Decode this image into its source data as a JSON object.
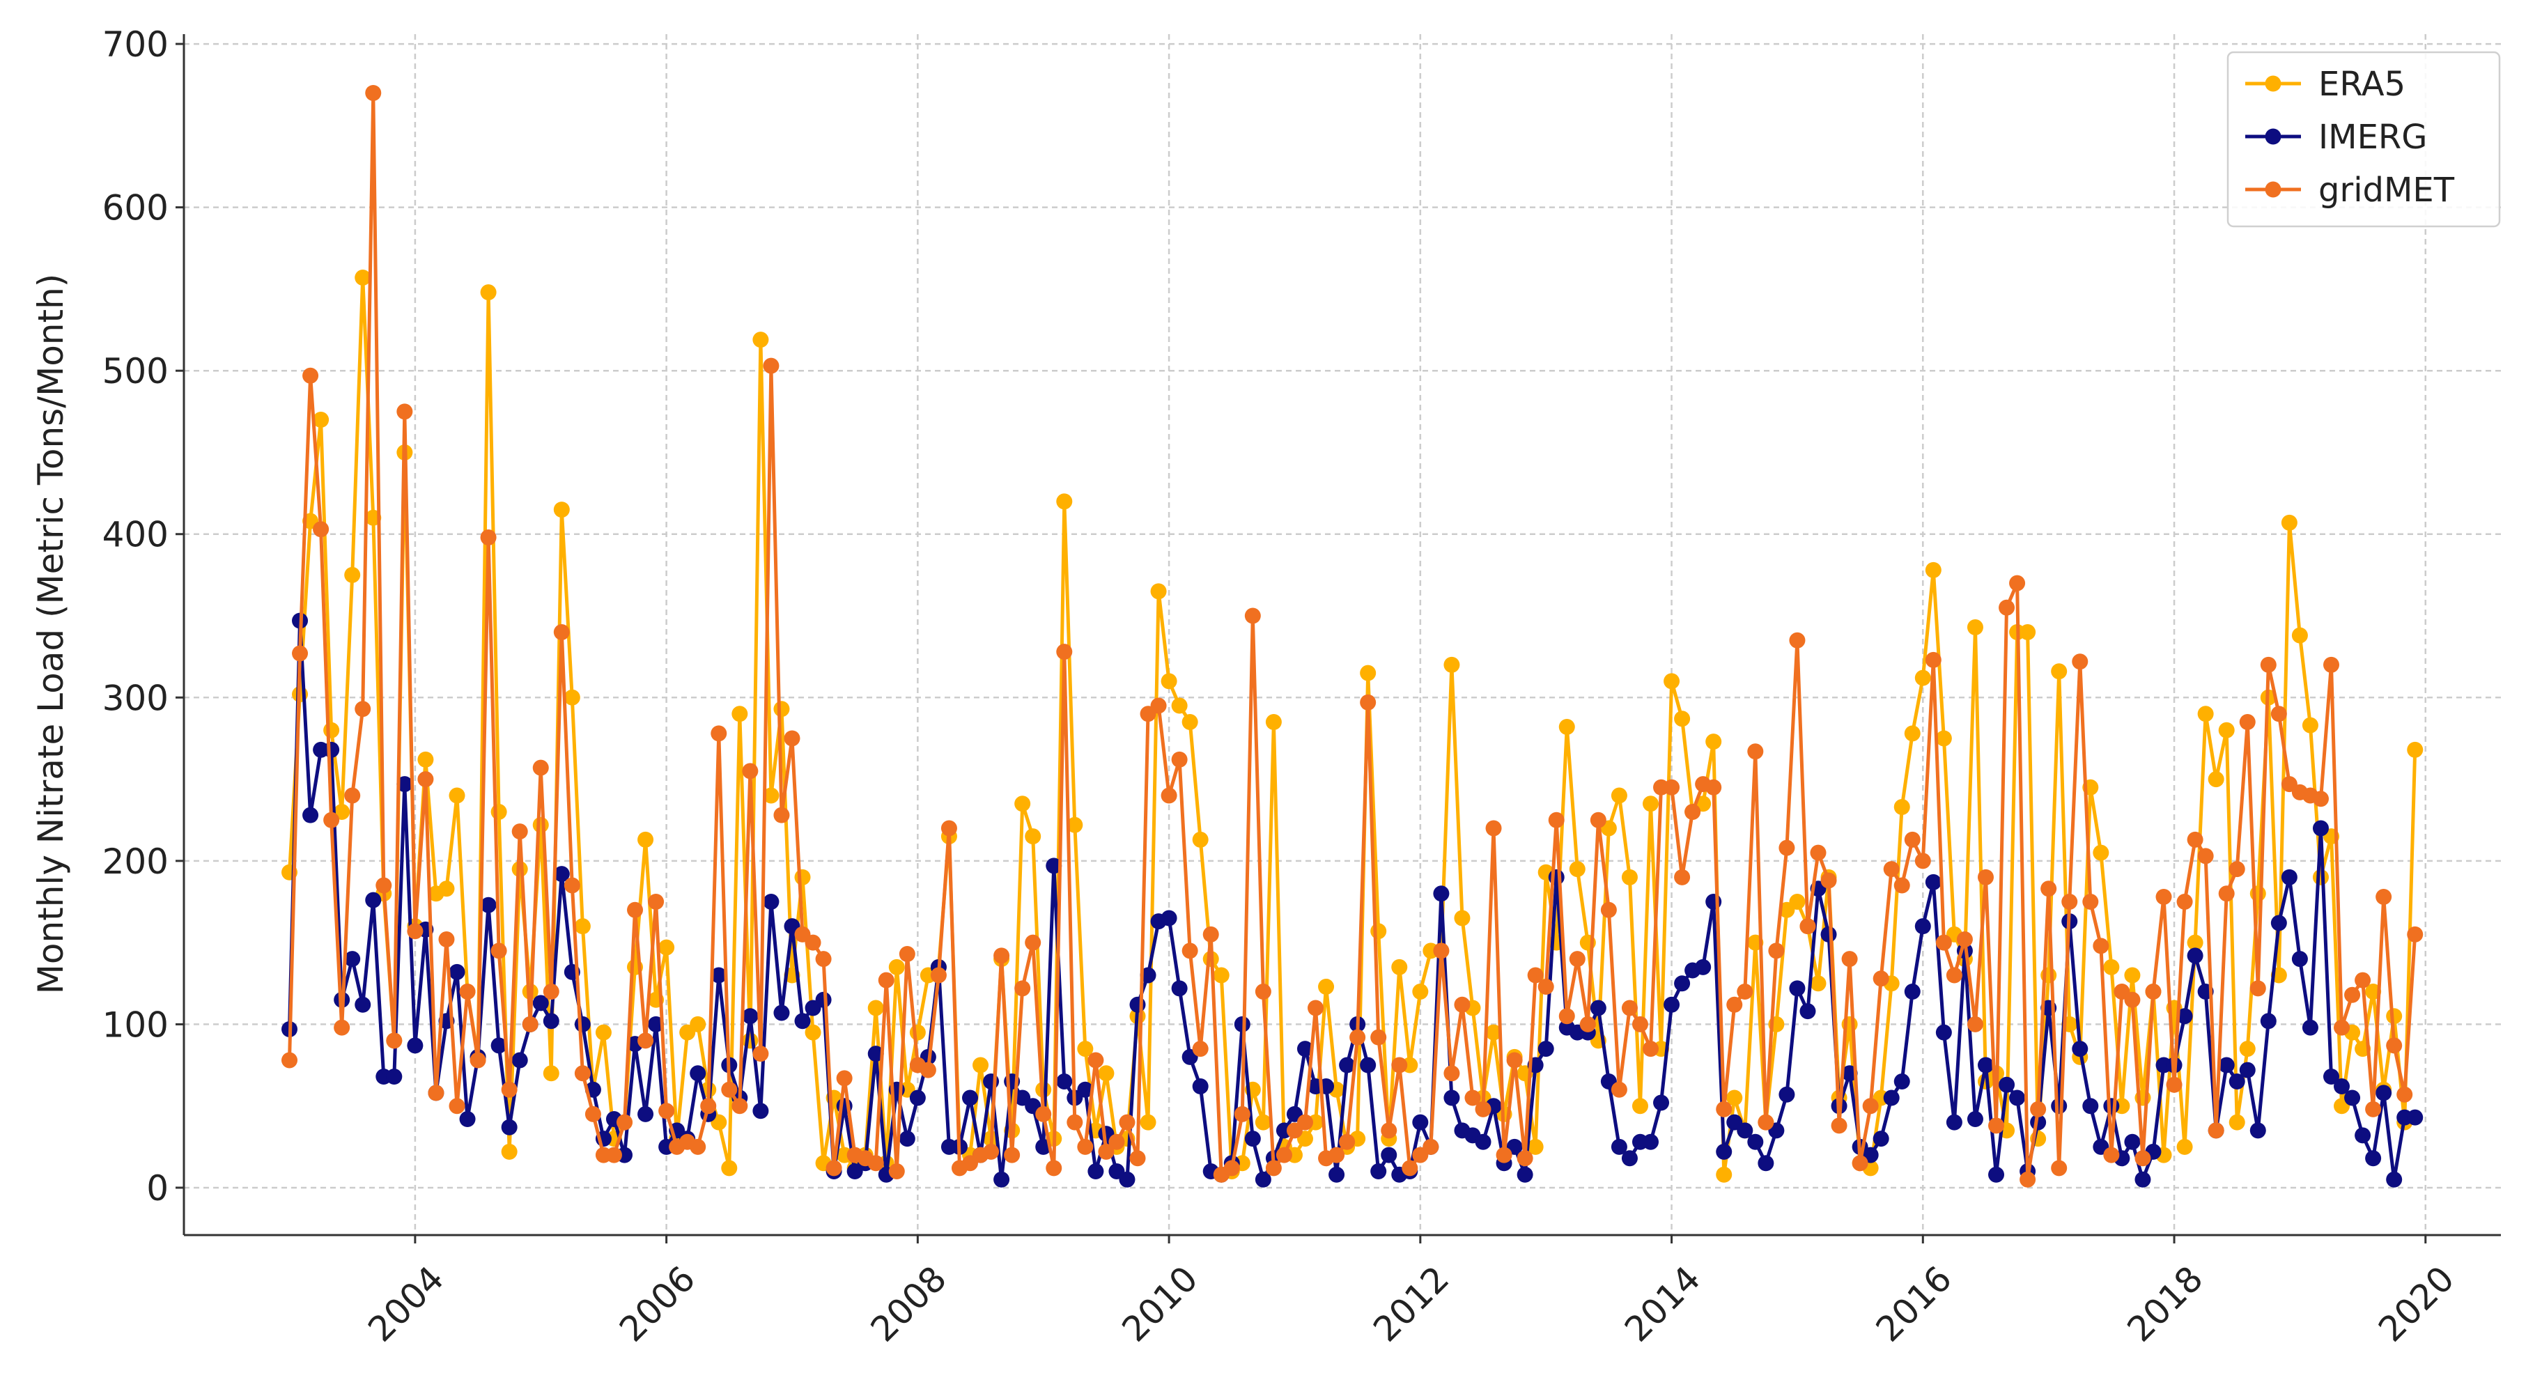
{
  "chart_data": {
    "type": "line",
    "y_label": "Monthly Nitrate Load (Metric Tons/Month)",
    "x": [
      "2003-01",
      "2003-02",
      "2003-03",
      "2003-04",
      "2003-05",
      "2003-06",
      "2003-07",
      "2003-08",
      "2003-09",
      "2003-10",
      "2003-11",
      "2003-12",
      "2004-01",
      "2004-02",
      "2004-03",
      "2004-04",
      "2004-05",
      "2004-06",
      "2004-07",
      "2004-08",
      "2004-09",
      "2004-10",
      "2004-11",
      "2004-12",
      "2005-01",
      "2005-02",
      "2005-03",
      "2005-04",
      "2005-05",
      "2005-06",
      "2005-07",
      "2005-08",
      "2005-09",
      "2005-10",
      "2005-11",
      "2005-12",
      "2006-01",
      "2006-02",
      "2006-03",
      "2006-04",
      "2006-05",
      "2006-06",
      "2006-07",
      "2006-08",
      "2006-09",
      "2006-10",
      "2006-11",
      "2006-12",
      "2007-01",
      "2007-02",
      "2007-03",
      "2007-04",
      "2007-05",
      "2007-06",
      "2007-07",
      "2007-08",
      "2007-09",
      "2007-10",
      "2007-11",
      "2007-12",
      "2008-01",
      "2008-02",
      "2008-03",
      "2008-04",
      "2008-05",
      "2008-06",
      "2008-07",
      "2008-08",
      "2008-09",
      "2008-10",
      "2008-11",
      "2008-12",
      "2009-01",
      "2009-02",
      "2009-03",
      "2009-04",
      "2009-05",
      "2009-06",
      "2009-07",
      "2009-08",
      "2009-09",
      "2009-10",
      "2009-11",
      "2009-12",
      "2010-01",
      "2010-02",
      "2010-03",
      "2010-04",
      "2010-05",
      "2010-06",
      "2010-07",
      "2010-08",
      "2010-09",
      "2010-10",
      "2010-11",
      "2010-12",
      "2011-01",
      "2011-02",
      "2011-03",
      "2011-04",
      "2011-05",
      "2011-06",
      "2011-07",
      "2011-08",
      "2011-09",
      "2011-10",
      "2011-11",
      "2011-12",
      "2012-01",
      "2012-02",
      "2012-03",
      "2012-04",
      "2012-05",
      "2012-06",
      "2012-07",
      "2012-08",
      "2012-09",
      "2012-10",
      "2012-11",
      "2012-12",
      "2013-01",
      "2013-02",
      "2013-03",
      "2013-04",
      "2013-05",
      "2013-06",
      "2013-07",
      "2013-08",
      "2013-09",
      "2013-10",
      "2013-11",
      "2013-12",
      "2014-01",
      "2014-02",
      "2014-03",
      "2014-04",
      "2014-05",
      "2014-06",
      "2014-07",
      "2014-08",
      "2014-09",
      "2014-10",
      "2014-11",
      "2014-12",
      "2015-01",
      "2015-02",
      "2015-03",
      "2015-04",
      "2015-05",
      "2015-06",
      "2015-07",
      "2015-08",
      "2015-09",
      "2015-10",
      "2015-11",
      "2015-12",
      "2016-01",
      "2016-02",
      "2016-03",
      "2016-04",
      "2016-05",
      "2016-06",
      "2016-07",
      "2016-08",
      "2016-09",
      "2016-10",
      "2016-11",
      "2016-12",
      "2017-01",
      "2017-02",
      "2017-03",
      "2017-04",
      "2017-05",
      "2017-06",
      "2017-07",
      "2017-08",
      "2017-09",
      "2017-10",
      "2017-11",
      "2017-12",
      "2018-01",
      "2018-02",
      "2018-03",
      "2018-04",
      "2018-05",
      "2018-06",
      "2018-07",
      "2018-08",
      "2018-09",
      "2018-10",
      "2018-11",
      "2018-12",
      "2019-01",
      "2019-02",
      "2019-03",
      "2019-04",
      "2019-05",
      "2019-06",
      "2019-07",
      "2019-08",
      "2019-09",
      "2019-10",
      "2019-11",
      "2019-12"
    ],
    "series": [
      {
        "name": "ERA5",
        "color": "#ffb000",
        "values": [
          193,
          302,
          408,
          470,
          280,
          230,
          375,
          557,
          410,
          180,
          90,
          450,
          160,
          262,
          180,
          183,
          240,
          120,
          80,
          548,
          230,
          22,
          195,
          120,
          222,
          70,
          415,
          300,
          160,
          60,
          95,
          30,
          40,
          135,
          213,
          115,
          147,
          30,
          95,
          100,
          60,
          40,
          12,
          290,
          90,
          519,
          240,
          293,
          130,
          190,
          95,
          15,
          55,
          20,
          12,
          20,
          110,
          15,
          135,
          60,
          95,
          130,
          135,
          215,
          25,
          20,
          75,
          30,
          140,
          35,
          235,
          215,
          60,
          30,
          420,
          222,
          85,
          35,
          70,
          25,
          30,
          105,
          40,
          365,
          310,
          295,
          285,
          213,
          140,
          130,
          10,
          15,
          60,
          40,
          285,
          25,
          20,
          30,
          40,
          123,
          60,
          25,
          30,
          315,
          157,
          30,
          135,
          75,
          120,
          145,
          145,
          320,
          165,
          110,
          55,
          95,
          45,
          80,
          70,
          25,
          193,
          150,
          282,
          195,
          150,
          90,
          220,
          240,
          190,
          50,
          235,
          85,
          310,
          287,
          230,
          235,
          273,
          8,
          55,
          35,
          150,
          40,
          100,
          170,
          175,
          160,
          125,
          190,
          55,
          100,
          15,
          12,
          55,
          125,
          233,
          278,
          312,
          378,
          275,
          155,
          140,
          343,
          65,
          70,
          35,
          340,
          340,
          30,
          130,
          316,
          100,
          80,
          245,
          205,
          135,
          50,
          130,
          55,
          120,
          20,
          110,
          25,
          150,
          290,
          250,
          280,
          40,
          85,
          180,
          300,
          130,
          407,
          338,
          283,
          190,
          215,
          50,
          95,
          85,
          120,
          60,
          105,
          40,
          268
        ]
      },
      {
        "name": "IMERG",
        "color": "#0d0d80",
        "values": [
          97,
          347,
          228,
          268,
          268,
          115,
          140,
          112,
          176,
          68,
          68,
          247,
          87,
          158,
          58,
          102,
          132,
          42,
          80,
          173,
          87,
          37,
          78,
          100,
          113,
          102,
          192,
          132,
          100,
          60,
          30,
          42,
          20,
          88,
          45,
          100,
          25,
          35,
          30,
          70,
          45,
          130,
          75,
          55,
          105,
          47,
          175,
          107,
          160,
          102,
          110,
          115,
          10,
          50,
          10,
          15,
          82,
          8,
          60,
          30,
          55,
          80,
          135,
          25,
          25,
          55,
          20,
          65,
          5,
          65,
          55,
          50,
          25,
          197,
          65,
          55,
          60,
          10,
          33,
          10,
          5,
          112,
          130,
          163,
          165,
          122,
          80,
          62,
          10,
          8,
          15,
          100,
          30,
          5,
          18,
          35,
          45,
          85,
          62,
          62,
          8,
          75,
          100,
          75,
          10,
          20,
          8,
          10,
          40,
          25,
          180,
          55,
          35,
          32,
          28,
          50,
          15,
          25,
          8,
          75,
          85,
          190,
          98,
          95,
          95,
          110,
          65,
          25,
          18,
          28,
          28,
          52,
          112,
          125,
          133,
          135,
          175,
          22,
          40,
          35,
          28,
          15,
          35,
          57,
          122,
          108,
          183,
          155,
          50,
          70,
          25,
          20,
          30,
          55,
          65,
          120,
          160,
          187,
          95,
          40,
          145,
          42,
          75,
          8,
          63,
          55,
          10,
          40,
          110,
          50,
          163,
          85,
          50,
          25,
          50,
          18,
          28,
          5,
          22,
          75,
          75,
          105,
          142,
          120,
          35,
          75,
          65,
          72,
          35,
          102,
          162,
          190,
          140,
          98,
          220,
          68,
          62,
          55,
          32,
          18,
          58,
          5,
          43,
          43
        ]
      },
      {
        "name": "gridMET",
        "color": "#f07020",
        "values": [
          78,
          327,
          497,
          403,
          225,
          98,
          240,
          293,
          670,
          185,
          90,
          475,
          157,
          250,
          58,
          152,
          50,
          120,
          78,
          398,
          145,
          60,
          218,
          100,
          257,
          120,
          340,
          185,
          70,
          45,
          20,
          20,
          40,
          170,
          90,
          175,
          47,
          25,
          28,
          25,
          50,
          278,
          60,
          50,
          255,
          82,
          503,
          228,
          275,
          155,
          150,
          140,
          12,
          67,
          20,
          18,
          15,
          127,
          10,
          143,
          75,
          72,
          130,
          220,
          12,
          15,
          20,
          22,
          142,
          20,
          122,
          150,
          45,
          12,
          328,
          40,
          25,
          78,
          22,
          28,
          40,
          18,
          290,
          295,
          240,
          262,
          145,
          85,
          155,
          8,
          12,
          45,
          350,
          120,
          12,
          20,
          35,
          40,
          110,
          18,
          20,
          28,
          92,
          297,
          92,
          35,
          75,
          12,
          20,
          25,
          145,
          70,
          112,
          55,
          48,
          220,
          20,
          78,
          18,
          130,
          123,
          225,
          105,
          140,
          100,
          225,
          170,
          60,
          110,
          100,
          85,
          245,
          245,
          190,
          230,
          247,
          245,
          48,
          112,
          120,
          267,
          40,
          145,
          208,
          335,
          160,
          205,
          188,
          38,
          140,
          15,
          50,
          128,
          195,
          185,
          213,
          200,
          323,
          150,
          130,
          152,
          100,
          190,
          38,
          355,
          370,
          5,
          48,
          183,
          12,
          175,
          322,
          175,
          148,
          20,
          120,
          115,
          18,
          120,
          178,
          63,
          175,
          213,
          203,
          35,
          180,
          195,
          285,
          122,
          320,
          290,
          247,
          242,
          240,
          238,
          320,
          98,
          118,
          127,
          48,
          178,
          87,
          57,
          155
        ]
      }
    ],
    "xlim": [
      2002.16,
      2020.6
    ],
    "xticks": [
      2004,
      2006,
      2008,
      2010,
      2012,
      2014,
      2016,
      2018,
      2020
    ],
    "ylim": [
      -29,
      706
    ],
    "yticks": [
      0,
      100,
      200,
      300,
      400,
      500,
      600,
      700
    ],
    "grid": true,
    "legend": "upper right"
  }
}
